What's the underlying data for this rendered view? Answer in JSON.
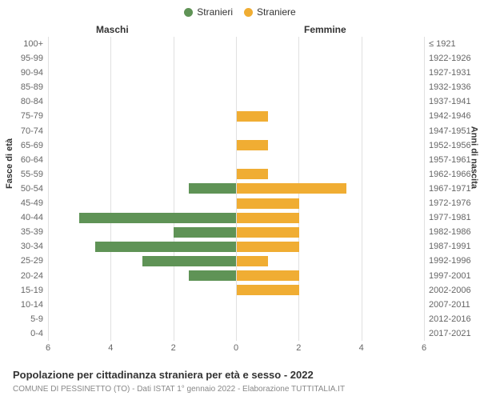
{
  "chart": {
    "type": "population-pyramid",
    "legend": [
      {
        "label": "Stranieri",
        "color": "#5f9356"
      },
      {
        "label": "Straniere",
        "color": "#f0ad33"
      }
    ],
    "column_headers": {
      "left": "Maschi",
      "right": "Femmine"
    },
    "y_axis_left_title": "Fasce di età",
    "y_axis_right_title": "Anni di nascita",
    "x_ticks": [
      6,
      4,
      2,
      0,
      2,
      4,
      6
    ],
    "x_max": 6,
    "colors": {
      "male": "#5f9356",
      "female": "#f0ad33",
      "grid": "#e0e0e0",
      "center_dash": "#666666",
      "text": "#333333",
      "subtext": "#666666",
      "background": "#ffffff"
    },
    "rows": [
      {
        "age": "100+",
        "birth": "≤ 1921",
        "m": 0,
        "f": 0
      },
      {
        "age": "95-99",
        "birth": "1922-1926",
        "m": 0,
        "f": 0
      },
      {
        "age": "90-94",
        "birth": "1927-1931",
        "m": 0,
        "f": 0
      },
      {
        "age": "85-89",
        "birth": "1932-1936",
        "m": 0,
        "f": 0
      },
      {
        "age": "80-84",
        "birth": "1937-1941",
        "m": 0,
        "f": 0
      },
      {
        "age": "75-79",
        "birth": "1942-1946",
        "m": 0,
        "f": 1
      },
      {
        "age": "70-74",
        "birth": "1947-1951",
        "m": 0,
        "f": 0
      },
      {
        "age": "65-69",
        "birth": "1952-1956",
        "m": 0,
        "f": 1
      },
      {
        "age": "60-64",
        "birth": "1957-1961",
        "m": 0,
        "f": 0
      },
      {
        "age": "55-59",
        "birth": "1962-1966",
        "m": 0,
        "f": 1
      },
      {
        "age": "50-54",
        "birth": "1967-1971",
        "m": 1.5,
        "f": 3.5
      },
      {
        "age": "45-49",
        "birth": "1972-1976",
        "m": 0,
        "f": 2
      },
      {
        "age": "40-44",
        "birth": "1977-1981",
        "m": 5,
        "f": 2
      },
      {
        "age": "35-39",
        "birth": "1982-1986",
        "m": 2,
        "f": 2
      },
      {
        "age": "30-34",
        "birth": "1987-1991",
        "m": 4.5,
        "f": 2
      },
      {
        "age": "25-29",
        "birth": "1992-1996",
        "m": 3,
        "f": 1
      },
      {
        "age": "20-24",
        "birth": "1997-2001",
        "m": 1.5,
        "f": 2
      },
      {
        "age": "15-19",
        "birth": "2002-2006",
        "m": 0,
        "f": 2
      },
      {
        "age": "10-14",
        "birth": "2007-2011",
        "m": 0,
        "f": 0
      },
      {
        "age": "5-9",
        "birth": "2012-2016",
        "m": 0,
        "f": 0
      },
      {
        "age": "0-4",
        "birth": "2017-2021",
        "m": 0,
        "f": 0
      }
    ],
    "title": "Popolazione per cittadinanza straniera per età e sesso - 2022",
    "subtitle": "COMUNE DI PESSINETTO (TO) - Dati ISTAT 1° gennaio 2022 - Elaborazione TUTTITALIA.IT"
  }
}
